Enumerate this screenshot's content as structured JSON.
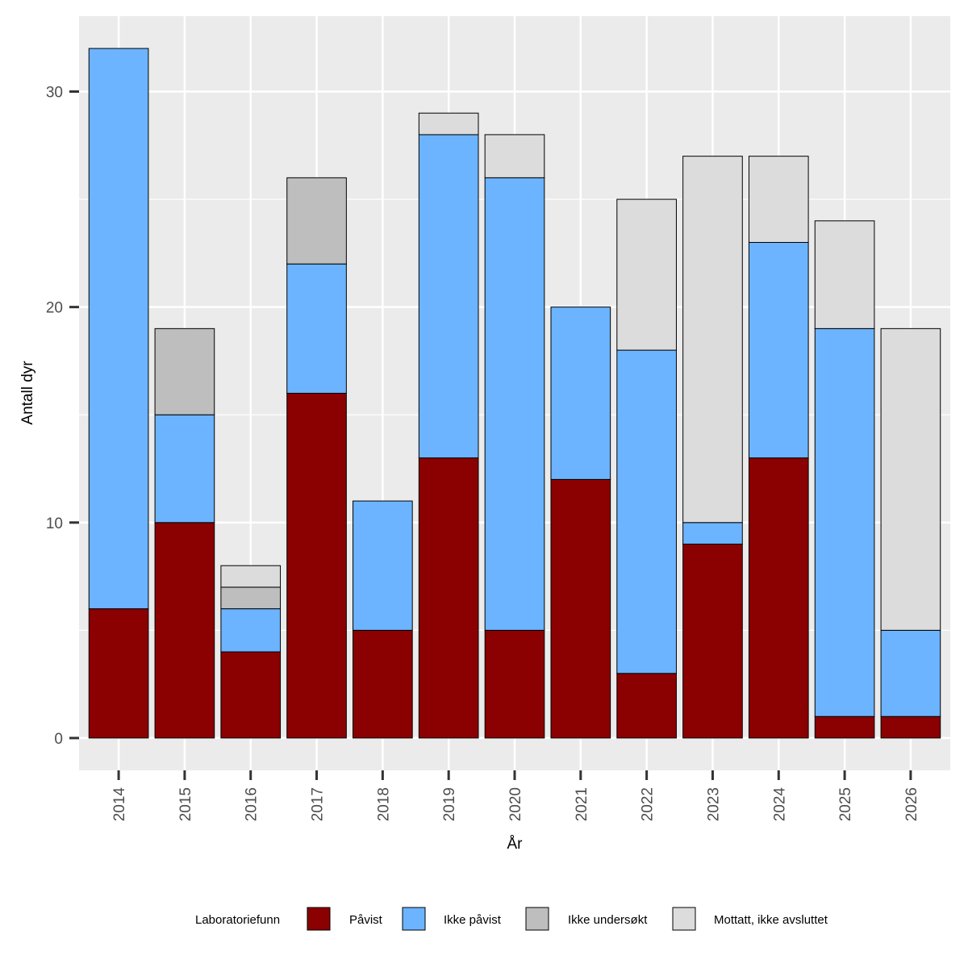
{
  "chart_data": {
    "type": "bar",
    "stacked": true,
    "xlabel": "År",
    "ylabel": "Antall dyr",
    "ylim": [
      -1.5,
      33.5
    ],
    "yticks": [
      0,
      10,
      20,
      30
    ],
    "grid": true,
    "legend_position": "bottom",
    "legend_title": "Laboratoriefunn",
    "categories": [
      "2014",
      "2015",
      "2016",
      "2017",
      "2018",
      "2019",
      "2020",
      "2021",
      "2022",
      "2023",
      "2024",
      "2025",
      "2026"
    ],
    "series": [
      {
        "name": "Påvist",
        "color": "#8B0000",
        "values": [
          6,
          10,
          4,
          16,
          5,
          13,
          5,
          12,
          3,
          9,
          13,
          1,
          1
        ]
      },
      {
        "name": "Ikke påvist",
        "color": "#6CB4FF",
        "values": [
          26,
          5,
          2,
          6,
          6,
          15,
          21,
          8,
          15,
          1,
          10,
          18,
          4
        ]
      },
      {
        "name": "Ikke undersøkt",
        "color": "#BEBEBE",
        "values": [
          0,
          4,
          1,
          4,
          0,
          0,
          0,
          0,
          0,
          0,
          0,
          0,
          0
        ]
      },
      {
        "name": "Mottatt, ikke avsluttet",
        "color": "#DCDCDC",
        "values": [
          0,
          0,
          1,
          0,
          0,
          1,
          2,
          0,
          7,
          17,
          4,
          5,
          14
        ]
      }
    ]
  }
}
